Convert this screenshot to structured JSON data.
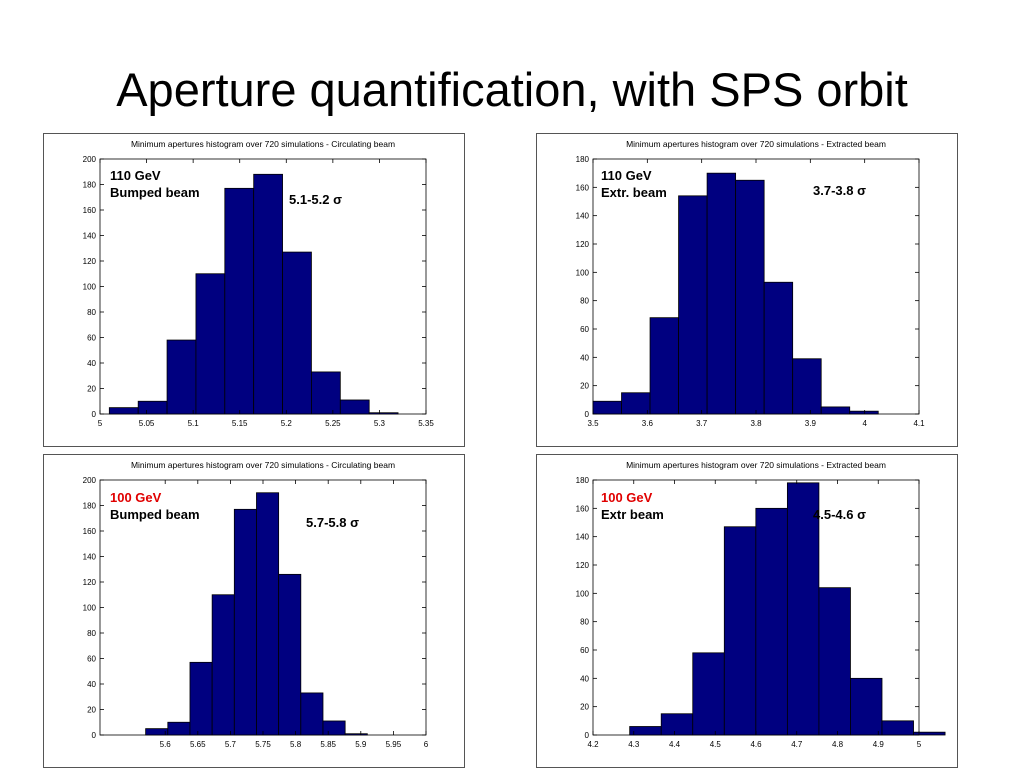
{
  "slide": {
    "title": "Aperture quantification, with SPS orbit"
  },
  "chart_data": [
    {
      "type": "bar",
      "title": "Minimum apertures histogram over 720 simulations - Circulating beam",
      "annotation": {
        "energy": "110 GeV",
        "energy_color": "#000000",
        "beam": "Bumped beam",
        "range": "5.1-5.2 σ"
      },
      "xlim": [
        5,
        5.35
      ],
      "ylim": [
        0,
        200
      ],
      "xticks": [
        "5",
        "5.05",
        "5.1",
        "5.15",
        "5.2",
        "5.25",
        "5.3",
        "5.35"
      ],
      "yticks": [
        "0",
        "20",
        "40",
        "60",
        "80",
        "100",
        "120",
        "140",
        "160",
        "180",
        "200"
      ],
      "bin_width": 0.031,
      "bin_start": 5.01,
      "values": [
        5,
        10,
        58,
        110,
        177,
        188,
        127,
        33,
        11,
        1
      ],
      "color": "#000080"
    },
    {
      "type": "bar",
      "title": "Minimum apertures histogram over 720 simulations - Extracted beam",
      "annotation": {
        "energy": "110 GeV",
        "energy_color": "#000000",
        "beam": "Extr. beam",
        "range": "3.7-3.8 σ"
      },
      "xlim": [
        3.5,
        4.1
      ],
      "ylim": [
        0,
        180
      ],
      "xticks": [
        "3.5",
        "3.6",
        "3.7",
        "3.8",
        "3.9",
        "4",
        "4.1"
      ],
      "yticks": [
        "0",
        "20",
        "40",
        "60",
        "80",
        "100",
        "120",
        "140",
        "160",
        "180"
      ],
      "bin_width": 0.0525,
      "bin_start": 3.5,
      "values": [
        9,
        15,
        68,
        154,
        170,
        165,
        93,
        39,
        5,
        2
      ],
      "color": "#000080"
    },
    {
      "type": "bar",
      "title": "Minimum apertures histogram over 720 simulations - Circulating beam",
      "annotation": {
        "energy": "100 GeV",
        "energy_color": "#e00000",
        "beam": "Bumped beam",
        "range": "5.7-5.8 σ"
      },
      "xlim": [
        5.5,
        6
      ],
      "ylim": [
        0,
        200
      ],
      "xticks": [
        "5.6",
        "5.65",
        "5.7",
        "5.75",
        "5.8",
        "5.85",
        "5.9",
        "5.95",
        "6"
      ],
      "yticks": [
        "0",
        "20",
        "40",
        "60",
        "80",
        "100",
        "120",
        "140",
        "160",
        "180",
        "200"
      ],
      "bin_width": 0.034,
      "bin_start": 5.57,
      "values": [
        5,
        10,
        57,
        110,
        177,
        190,
        126,
        33,
        11,
        1
      ],
      "color": "#000080"
    },
    {
      "type": "bar",
      "title": "Minimum apertures histogram over 720 simulations - Extracted beam",
      "annotation": {
        "energy": "100 GeV",
        "energy_color": "#e00000",
        "beam": "Extr beam",
        "range": "4.5-4.6 σ"
      },
      "xlim": [
        4.2,
        5
      ],
      "ylim": [
        0,
        180
      ],
      "xticks": [
        "4.2",
        "4.3",
        "4.4",
        "4.5",
        "4.6",
        "4.7",
        "4.8",
        "4.9",
        "5"
      ],
      "yticks": [
        "0",
        "20",
        "40",
        "60",
        "80",
        "100",
        "120",
        "140",
        "160",
        "180"
      ],
      "bin_width": 0.0774,
      "bin_start": 4.29,
      "values": [
        6,
        15,
        58,
        147,
        160,
        178,
        104,
        40,
        10,
        2
      ],
      "color": "#000080"
    }
  ]
}
